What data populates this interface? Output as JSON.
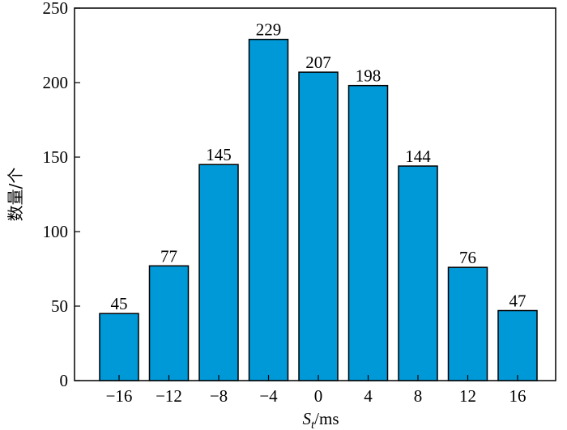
{
  "chart_data": {
    "type": "bar",
    "categories": [
      "−16",
      "−12",
      "−8",
      "−4",
      "0",
      "4",
      "8",
      "12",
      "16"
    ],
    "values": [
      45,
      77,
      145,
      229,
      207,
      198,
      144,
      76,
      47
    ],
    "ylabel": "数量/个",
    "xlabel_main": "S",
    "xlabel_sub": "t",
    "xlabel_unit": "/ms",
    "ylim": [
      0,
      250
    ],
    "yticks": [
      0,
      50,
      100,
      150,
      200,
      250
    ],
    "bar_color": "#0099D8",
    "grid": false,
    "legend": "none"
  }
}
